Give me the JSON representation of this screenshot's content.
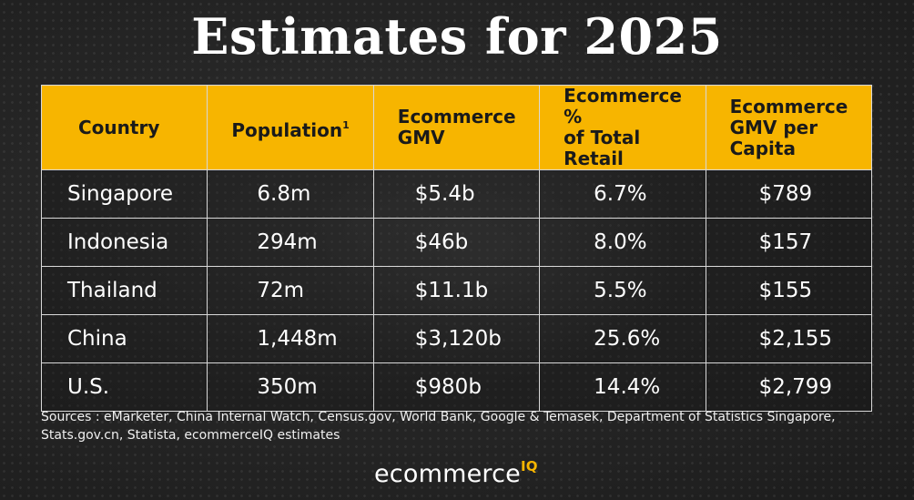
{
  "title": "Estimates for 2025",
  "table": {
    "headers": [
      {
        "line1": "Country",
        "line2": ""
      },
      {
        "line1": "Population",
        "line2": ""
      },
      {
        "line1": "Ecommerce",
        "line2": "GMV"
      },
      {
        "line1": "Ecommerce %",
        "line2": "of Total Retail"
      },
      {
        "line1": "Ecommerce",
        "line2": "GMV per Capita"
      }
    ],
    "population_footnote": "1",
    "rows": [
      [
        "Singapore",
        "6.8m",
        "$5.4b",
        "6.7%",
        "$789"
      ],
      [
        "Indonesia",
        "294m",
        "$46b",
        "8.0%",
        "$157"
      ],
      [
        "Thailand",
        "72m",
        "$11.1b",
        "5.5%",
        "$155"
      ],
      [
        "China",
        "1,448m",
        "$3,120b",
        "25.6%",
        "$2,155"
      ],
      [
        "U.S.",
        "350m",
        "$980b",
        "14.4%",
        "$2,799"
      ]
    ]
  },
  "sources": {
    "line1": "Sources : eMarketer, China Internal Watch, Census.gov, World Bank, Google & Temasek, Department of Statistics Singapore,",
    "line2": "Stats.gov.cn, Statista, ecommerceIQ estimates"
  },
  "logo": {
    "main": "ecommerce",
    "suffix": "IQ"
  },
  "colors": {
    "header_bg": "#f7b500",
    "accent": "#f7b500",
    "background": "#262626"
  }
}
